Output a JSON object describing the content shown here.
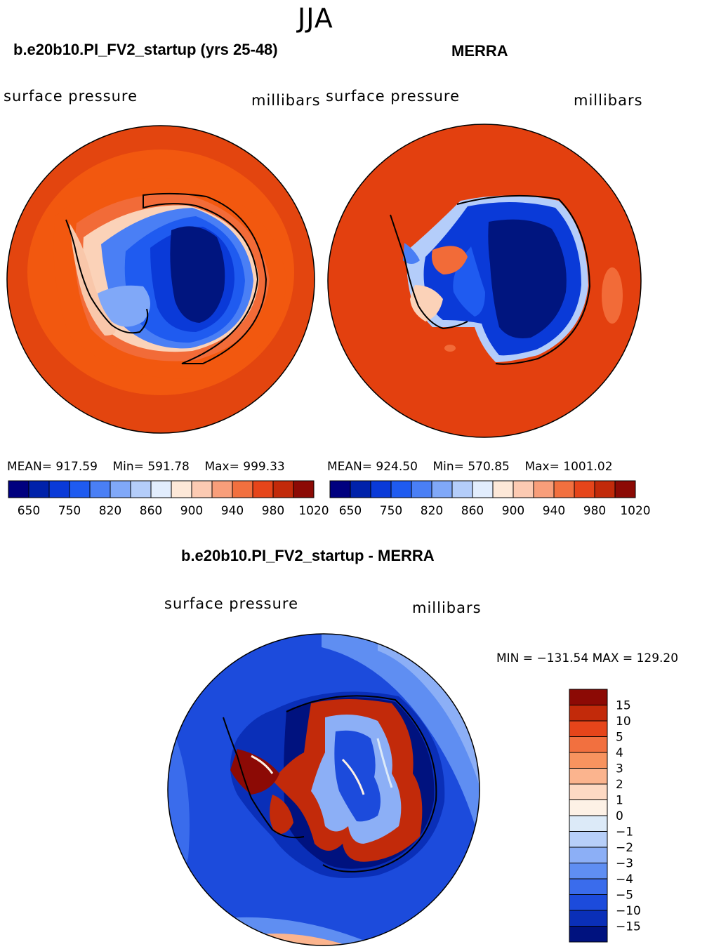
{
  "season": "JJA",
  "panels": [
    {
      "title": "b.e20b10.PI_FV2_startup (yrs 25-48)",
      "field_label": "surface pressure",
      "units_label": "millibars",
      "stats": {
        "mean_label": "MEAN=",
        "mean": "917.59",
        "min_label": "Min=",
        "min": "591.78",
        "max_label": "Max=",
        "max": "999.33"
      }
    },
    {
      "title": "MERRA",
      "field_label": "surface pressure",
      "units_label": "millibars",
      "stats": {
        "mean_label": "MEAN=",
        "mean": "924.50",
        "min_label": "Min=",
        "min": "570.85",
        "max_label": "Max=",
        "max": "1001.02"
      }
    }
  ],
  "abs_colorbar": {
    "colors": [
      "#00007f",
      "#0022aa",
      "#0a3ad8",
      "#1f5bf0",
      "#4a7ff5",
      "#80a8f8",
      "#b4cdfa",
      "#e2edfd",
      "#fde8d8",
      "#fccab2",
      "#f89e7a",
      "#f2703f",
      "#e6451a",
      "#c22a0a",
      "#8c0a05"
    ],
    "tick_labels": [
      "650",
      "750",
      "820",
      "860",
      "900",
      "940",
      "980",
      "1020"
    ]
  },
  "diff_panel": {
    "title": "b.e20b10.PI_FV2_startup - MERRA",
    "field_label": "surface pressure",
    "units_label": "millibars",
    "minmax_text": "MIN = −131.54  MAX = 129.20"
  },
  "diff_colorbar": {
    "colors": [
      "#8c0a05",
      "#c22a0a",
      "#e6451a",
      "#f2703f",
      "#f8935f",
      "#fbb48e",
      "#fdd9c3",
      "#fdf1e6",
      "#dceaf8",
      "#b7cff9",
      "#8caff6",
      "#5f8ef2",
      "#3a6cec",
      "#1c4bdc",
      "#0a2fb8",
      "#00127f"
    ],
    "tick_labels": [
      "15",
      "10",
      "5",
      "4",
      "3",
      "2",
      "1",
      "0",
      "−1",
      "−2",
      "−3",
      "−4",
      "−5",
      "−10",
      "−15"
    ]
  }
}
